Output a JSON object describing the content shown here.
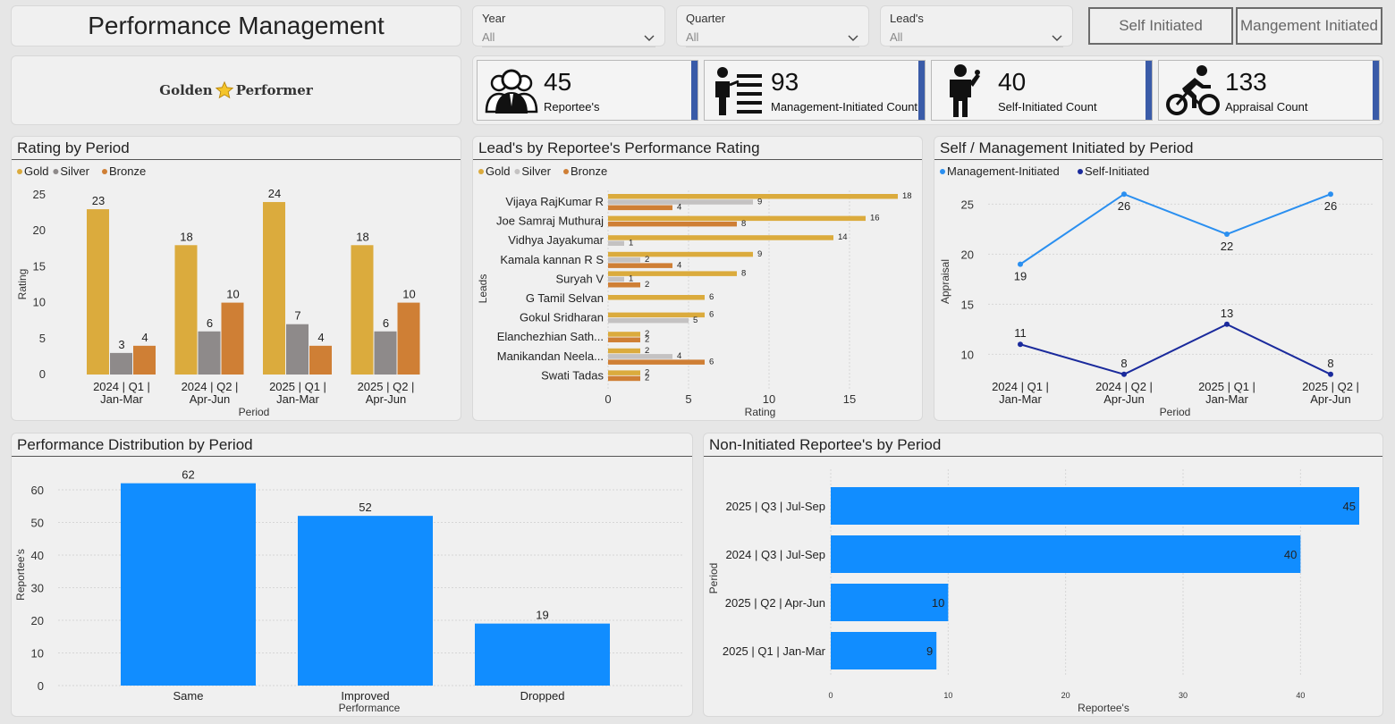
{
  "header": {
    "title": "Performance Management",
    "filters": [
      {
        "label": "Year",
        "value": "All"
      },
      {
        "label": "Quarter",
        "value": "All"
      },
      {
        "label": "Lead's",
        "value": "All"
      }
    ],
    "toggle_self": "Self Initiated",
    "toggle_mgmt": "Mangement Initiated"
  },
  "logo": {
    "text_left": "Golden",
    "text_right": "Performer"
  },
  "kpis": [
    {
      "value": "45",
      "label": "Reportee's",
      "icon": "team-icon"
    },
    {
      "value": "93",
      "label": "Management-Initiated Count",
      "icon": "checklist-icon"
    },
    {
      "value": "40",
      "label": "Self-Initiated Count",
      "icon": "person-thinking-icon"
    },
    {
      "value": "133",
      "label": "Appraisal Count",
      "icon": "cyclist-icon"
    }
  ],
  "colors": {
    "gold": "#dbab3d",
    "silver": "#8e8a8a",
    "silver_light": "#c4c2c2",
    "bronze": "#cf7f35",
    "mgmt_line": "#2a8ff0",
    "self_line": "#1a2a9c",
    "blue_bar": "#118dff",
    "kpi_accent": "#3a5ba8"
  },
  "chart_data": [
    {
      "id": "rating",
      "type": "bar",
      "title": "Rating by Period",
      "legend": [
        "Gold",
        "Silver",
        "Bronze"
      ],
      "categories": [
        [
          "2024 | Q1 |",
          "Jan-Mar"
        ],
        [
          "2024 | Q2 |",
          "Apr-Jun"
        ],
        [
          "2025 | Q1 |",
          "Jan-Mar"
        ],
        [
          "2025 | Q2 |",
          "Apr-Jun"
        ]
      ],
      "series": [
        {
          "name": "Gold",
          "values": [
            23,
            18,
            24,
            18
          ]
        },
        {
          "name": "Silver",
          "values": [
            3,
            6,
            7,
            6
          ]
        },
        {
          "name": "Bronze",
          "values": [
            4,
            10,
            4,
            10
          ]
        }
      ],
      "xlabel": "Period",
      "ylabel": "Rating",
      "ylim": [
        0,
        25
      ],
      "yticks": [
        0,
        5,
        10,
        15,
        20,
        25
      ]
    },
    {
      "id": "leads",
      "type": "bar",
      "orientation": "horizontal",
      "title": "Lead's by Reportee's Performance Rating",
      "legend": [
        "Gold",
        "Silver",
        "Bronze"
      ],
      "categories": [
        "Vijaya RajKumar R",
        "Joe Samraj Muthuraj",
        "Vidhya Jayakumar",
        "Kamala kannan R S",
        "Suryah V",
        "G Tamil Selvan",
        "Gokul Sridharan",
        "Elanchezhian Sath...",
        "Manikandan Neela...",
        "Swati Tadas"
      ],
      "series": [
        {
          "name": "Gold",
          "values": [
            18,
            16,
            14,
            9,
            8,
            6,
            6,
            2,
            2,
            2
          ]
        },
        {
          "name": "Silver",
          "values": [
            9,
            null,
            1,
            2,
            1,
            null,
            5,
            null,
            4,
            null
          ]
        },
        {
          "name": "Bronze",
          "values": [
            4,
            8,
            null,
            4,
            2,
            null,
            null,
            2,
            6,
            2
          ]
        }
      ],
      "xlabel": "Rating",
      "ylabel": "Leads",
      "xlim": [
        0,
        18
      ],
      "xticks": [
        0,
        5,
        10,
        15
      ]
    },
    {
      "id": "initiated",
      "type": "line",
      "title": "Self / Management Initiated by Period",
      "legend": [
        "Management-Initiated",
        "Self-Initiated"
      ],
      "categories": [
        [
          "2024 | Q1 |",
          "Jan-Mar"
        ],
        [
          "2024 | Q2 |",
          "Apr-Jun"
        ],
        [
          "2025 | Q1 |",
          "Jan-Mar"
        ],
        [
          "2025 | Q2 |",
          "Apr-Jun"
        ]
      ],
      "series": [
        {
          "name": "Management-Initiated",
          "values": [
            19,
            26,
            22,
            26
          ]
        },
        {
          "name": "Self-Initiated",
          "values": [
            11,
            8,
            13,
            8
          ]
        }
      ],
      "xlabel": "Period",
      "ylabel": "Appraisal",
      "ylim": [
        7,
        27
      ],
      "yticks": [
        10,
        15,
        20,
        25
      ]
    },
    {
      "id": "distribution",
      "type": "bar",
      "title": "Performance Distribution by Period",
      "categories": [
        "Same",
        "Improved",
        "Dropped"
      ],
      "values": [
        62,
        52,
        19
      ],
      "xlabel": "Performance",
      "ylabel": "Reportee's",
      "ylim": [
        0,
        63
      ],
      "yticks": [
        0,
        10,
        20,
        30,
        40,
        50,
        60
      ]
    },
    {
      "id": "noninit",
      "type": "bar",
      "orientation": "horizontal",
      "title": "Non-Initiated Reportee's by Period",
      "categories": [
        "2025 | Q3 | Jul-Sep",
        "2024 | Q3 | Jul-Sep",
        "2025 | Q2 | Apr-Jun",
        "2025 | Q1 | Jan-Mar"
      ],
      "values": [
        45,
        40,
        10,
        9
      ],
      "xlabel": "Reportee's",
      "ylabel": "Period",
      "xlim": [
        0,
        45
      ],
      "xticks": [
        0,
        10,
        20,
        30,
        40
      ]
    }
  ]
}
